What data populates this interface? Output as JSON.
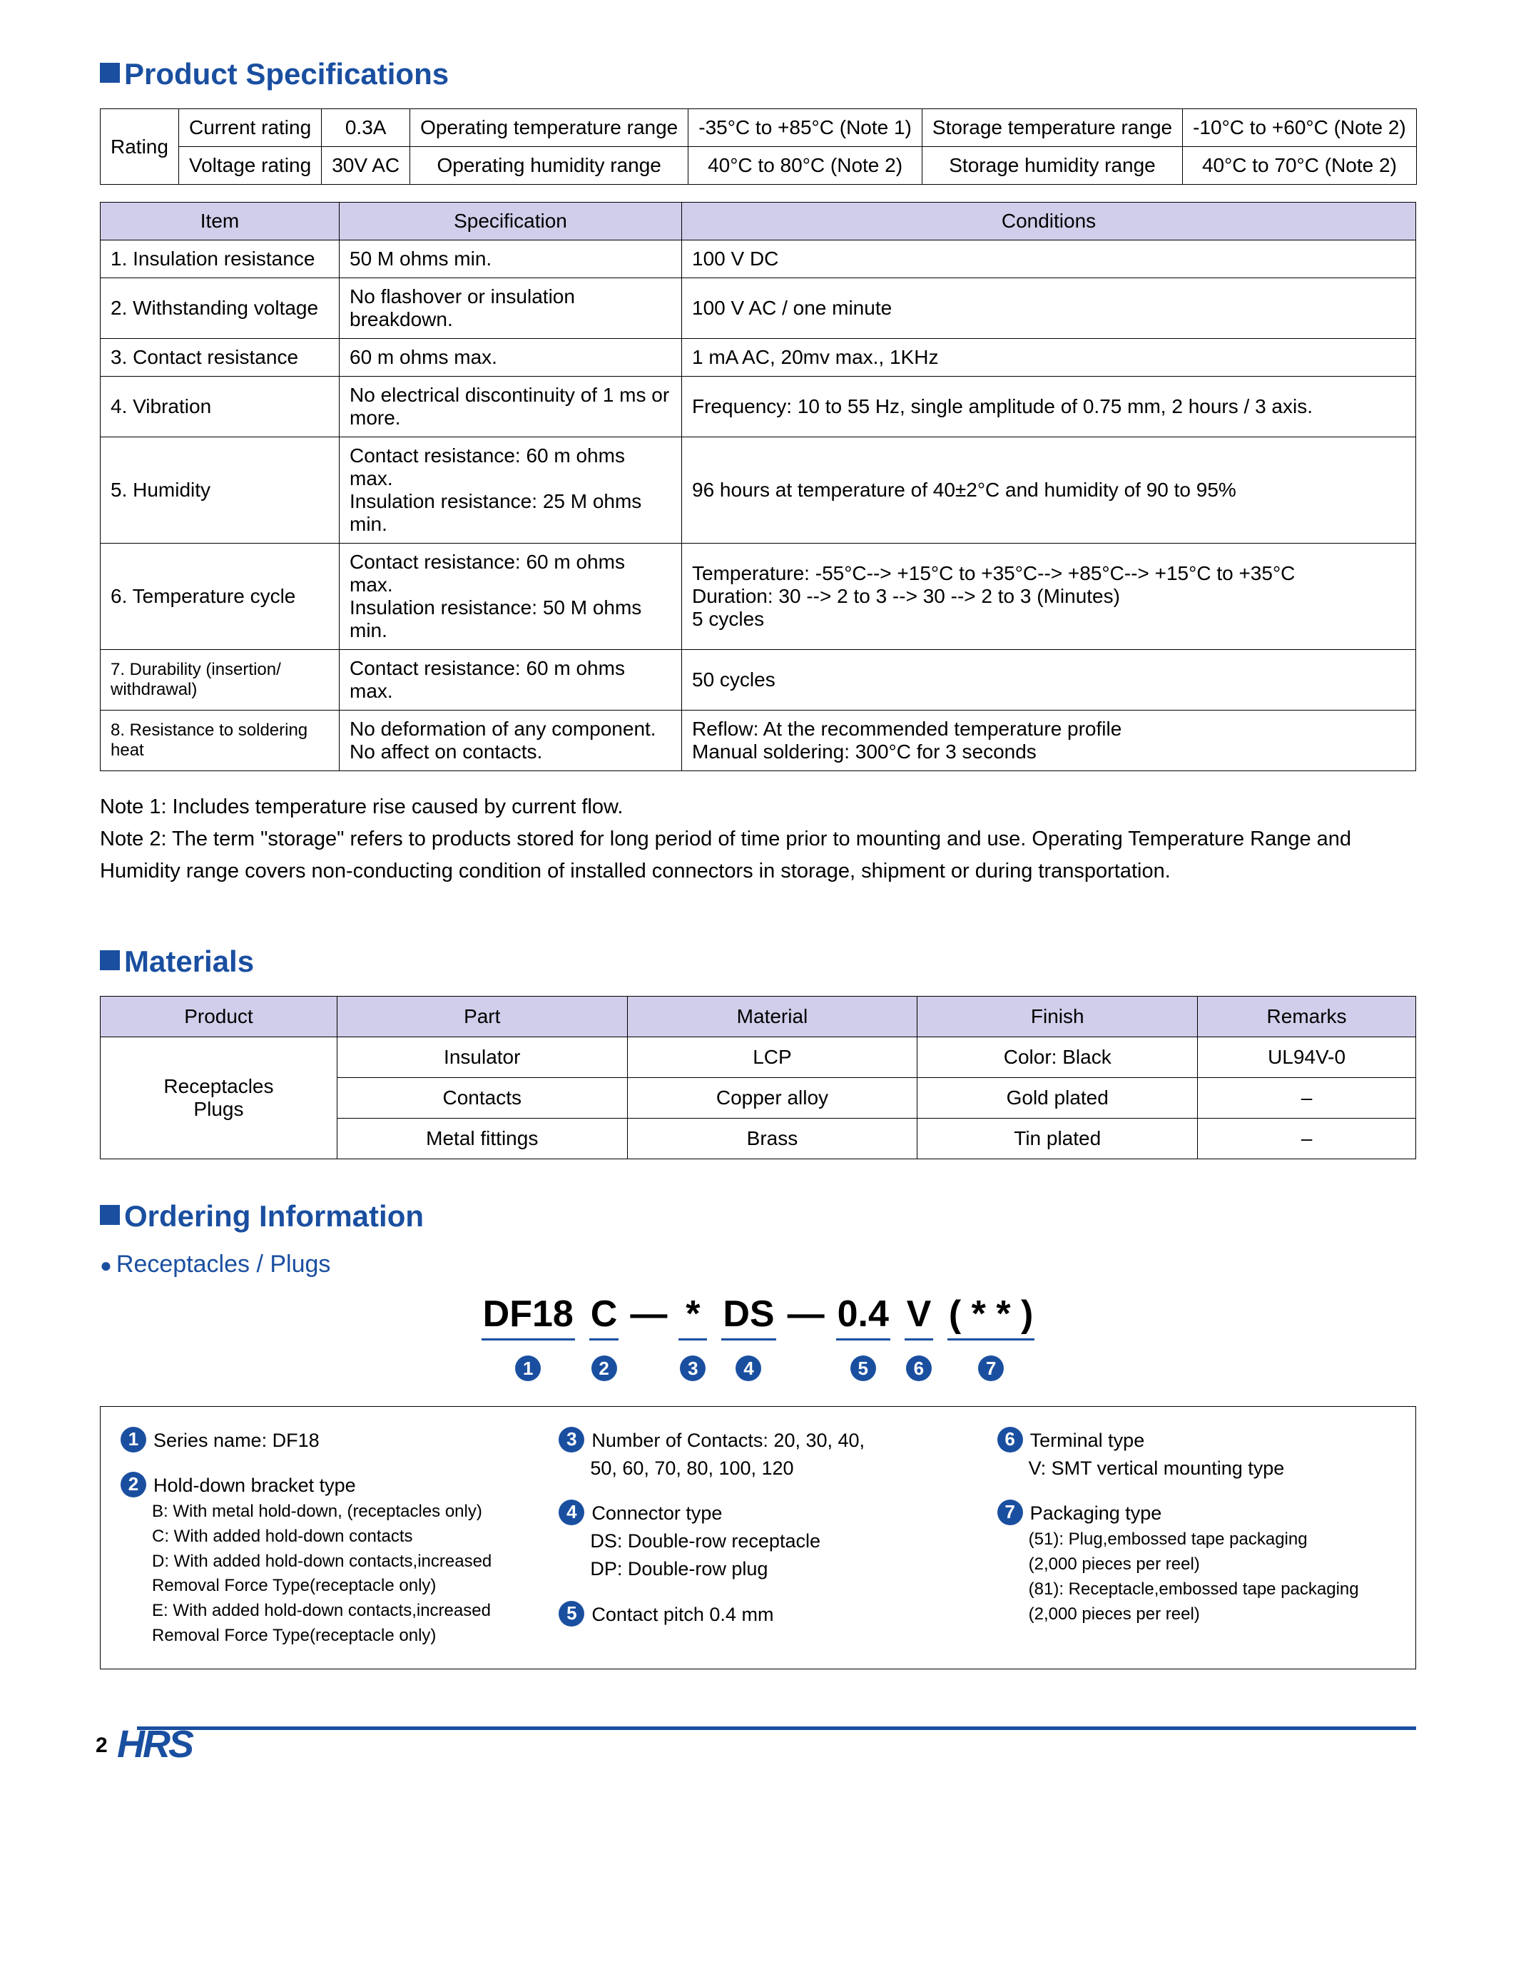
{
  "colors": {
    "brand_blue": "#1a4fa0",
    "table_header_bg": "#d0ceea",
    "border": "#000000"
  },
  "sections": {
    "spec_title": "Product Specifications",
    "materials_title": "Materials",
    "ordering_title": "Ordering Information",
    "ordering_sub": "Receptacles / Plugs"
  },
  "rating_table": {
    "rating_label": "Rating",
    "rows": [
      {
        "l1": "Current rating",
        "v1": "0.3A",
        "l2": "Operating temperature range",
        "v2": "-35°C  to +85°C (Note 1)",
        "l3": "Storage temperature range",
        "v3": "-10°C to +60°C (Note 2)"
      },
      {
        "l1": "Voltage rating",
        "v1": "30V AC",
        "l2": "Operating humidity range",
        "v2": "40°C  to   80°C (Note 2)",
        "l3": "Storage humidity range",
        "v3": "40°C to   70°C (Note 2)"
      }
    ]
  },
  "spec_table": {
    "headers": [
      "Item",
      "Specification",
      "Conditions"
    ],
    "rows": [
      {
        "item": "1. Insulation resistance",
        "spec": "50 M ohms min.",
        "cond": "100 V DC"
      },
      {
        "item": "2. Withstanding voltage",
        "spec": "No flashover or insulation breakdown.",
        "cond": "100 V AC / one minute"
      },
      {
        "item": "3. Contact resistance",
        "spec": "60 m ohms max.",
        "cond": "1 mA AC, 20mv max., 1KHz"
      },
      {
        "item": "4. Vibration",
        "spec": "No electrical discontinuity of 1 ms or more.",
        "cond": "Frequency: 10 to 55 Hz, single amplitude of 0.75 mm, 2 hours / 3 axis."
      },
      {
        "item": "5. Humidity",
        "spec": "Contact resistance: 60 m ohms max.\nInsulation resistance: 25 M ohms min.",
        "cond": "96 hours at temperature of 40±2°C and humidity of 90 to 95%"
      },
      {
        "item": "6. Temperature cycle",
        "spec": "Contact resistance: 60 m ohms max.\nInsulation resistance: 50 M ohms min.",
        "cond": "Temperature: -55°C--> +15°C to +35°C--> +85°C--> +15°C  to +35°C\nDuration: 30 --> 2 to 3 --> 30 --> 2 to 3 (Minutes)\n5 cycles"
      },
      {
        "item": "7. Durability (insertion/ withdrawal)",
        "item_small": true,
        "spec": "Contact resistance: 60 m ohms max.",
        "cond": "50 cycles"
      },
      {
        "item": "8. Resistance to soldering heat",
        "item_small": true,
        "spec": "No deformation of any component.\nNo affect on contacts.",
        "cond": "Reflow: At the recommended temperature profile\nManual soldering: 300°C for 3 seconds"
      }
    ]
  },
  "notes": {
    "n1": "Note 1: Includes temperature rise caused by current flow.",
    "n2": "Note 2: The term \"storage\" refers to products stored for long period of time prior to mounting and use. Operating Temperature Range and Humidity range covers non-conducting condition of  installed connectors in storage, shipment or during transportation."
  },
  "materials_table": {
    "headers": [
      "Product",
      "Part",
      "Material",
      "Finish",
      "Remarks"
    ],
    "product": "Receptacles\nPlugs",
    "rows": [
      {
        "part": "Insulator",
        "material": "LCP",
        "finish": "Color: Black",
        "remarks": "UL94V-0"
      },
      {
        "part": "Contacts",
        "material": "Copper alloy",
        "finish": "Gold plated",
        "remarks": "–"
      },
      {
        "part": "Metal fittings",
        "material": "Brass",
        "finish": "Tin plated",
        "remarks": "–"
      }
    ]
  },
  "order_code": {
    "segments": [
      {
        "text": "DF18",
        "num": "1"
      },
      {
        "text": "C",
        "num": "2"
      },
      {
        "dash": true
      },
      {
        "text": "*",
        "num": "3"
      },
      {
        "text": "DS",
        "num": "4"
      },
      {
        "dash": true
      },
      {
        "text": "0.4",
        "num": "5"
      },
      {
        "text": "V",
        "num": "6"
      },
      {
        "text": "( * * )",
        "num": "7"
      }
    ]
  },
  "ordering": {
    "col1": [
      {
        "num": "1",
        "title": "Series name: DF18",
        "lines": []
      },
      {
        "num": "2",
        "title": "Hold-down bracket type",
        "lines": [
          "B: With metal hold-down, (receptacles only)",
          "C: With  added hold-down contacts",
          "D: With added hold-down contacts,increased",
          "    Removal Force Type(receptacle only)",
          "E: With added hold-down contacts,increased",
          "    Removal Force Type(receptacle only)"
        ],
        "small": true
      }
    ],
    "col2": [
      {
        "num": "3",
        "title": "Number of Contacts: 20, 30, 40,",
        "lines": [
          "50, 60, 70, 80, 100, 120"
        ]
      },
      {
        "num": "4",
        "title": "Connector type",
        "lines": [
          "DS: Double-row receptacle",
          "DP: Double-row plug"
        ]
      },
      {
        "num": "5",
        "title": "Contact pitch  0.4 mm",
        "lines": []
      }
    ],
    "col3": [
      {
        "num": "6",
        "title": "Terminal type",
        "lines": [
          "V: SMT vertical mounting type"
        ]
      },
      {
        "num": "7",
        "title": "Packaging type",
        "lines": [
          "(51): Plug,embossed tape packaging",
          "(2,000 pieces per reel)",
          "(81): Receptacle,embossed tape packaging",
          "(2,000 pieces per reel)"
        ],
        "small": true
      }
    ]
  },
  "footer": {
    "page": "2",
    "logo": "HRS"
  }
}
